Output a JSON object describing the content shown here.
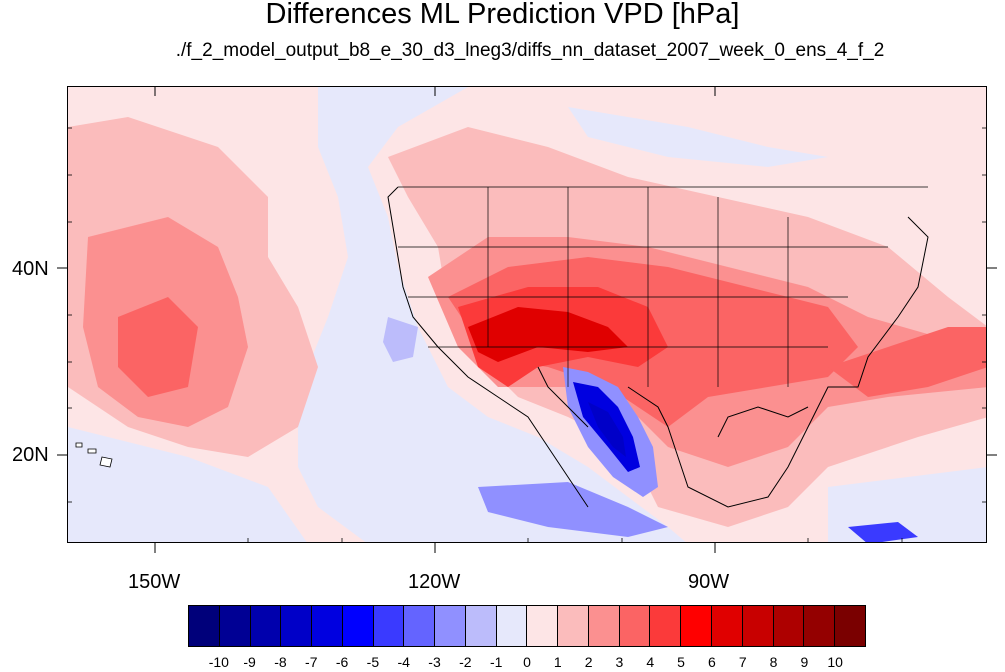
{
  "title": "Differences ML Prediction VPD [hPa]",
  "subtitle": "./f_2_model_output_b8_e_30_d3_lneg3/diffs_nn_dataset_2007_week_0_ens_4_f_2",
  "axes": {
    "x_ticks": [
      "150W",
      "120W",
      "90W"
    ],
    "y_ticks": [
      "40N",
      "20N"
    ]
  },
  "colorbar": {
    "labels": [
      "-10",
      "-9",
      "-8",
      "-7",
      "-6",
      "-5",
      "-4",
      "-3",
      "-2",
      "-1",
      "0",
      "1",
      "2",
      "3",
      "4",
      "5",
      "6",
      "7",
      "8",
      "9",
      "10"
    ],
    "colors": [
      "#00007a",
      "#000094",
      "#0000ad",
      "#0000c8",
      "#0000e0",
      "#0000ff",
      "#3a3aff",
      "#6464ff",
      "#9090ff",
      "#bcbcfb",
      "#e6e8fb",
      "#fde5e6",
      "#fbbcbc",
      "#fb9090",
      "#fb6464",
      "#fb3a3a",
      "#ff0000",
      "#e00000",
      "#c80000",
      "#ad0000",
      "#940000",
      "#7a0000"
    ]
  },
  "map": {
    "lon_range": [
      -160,
      -62
    ],
    "lat_range": [
      11,
      60
    ],
    "region": "Pacific Ocean, North America, Gulf of Mexico"
  }
}
